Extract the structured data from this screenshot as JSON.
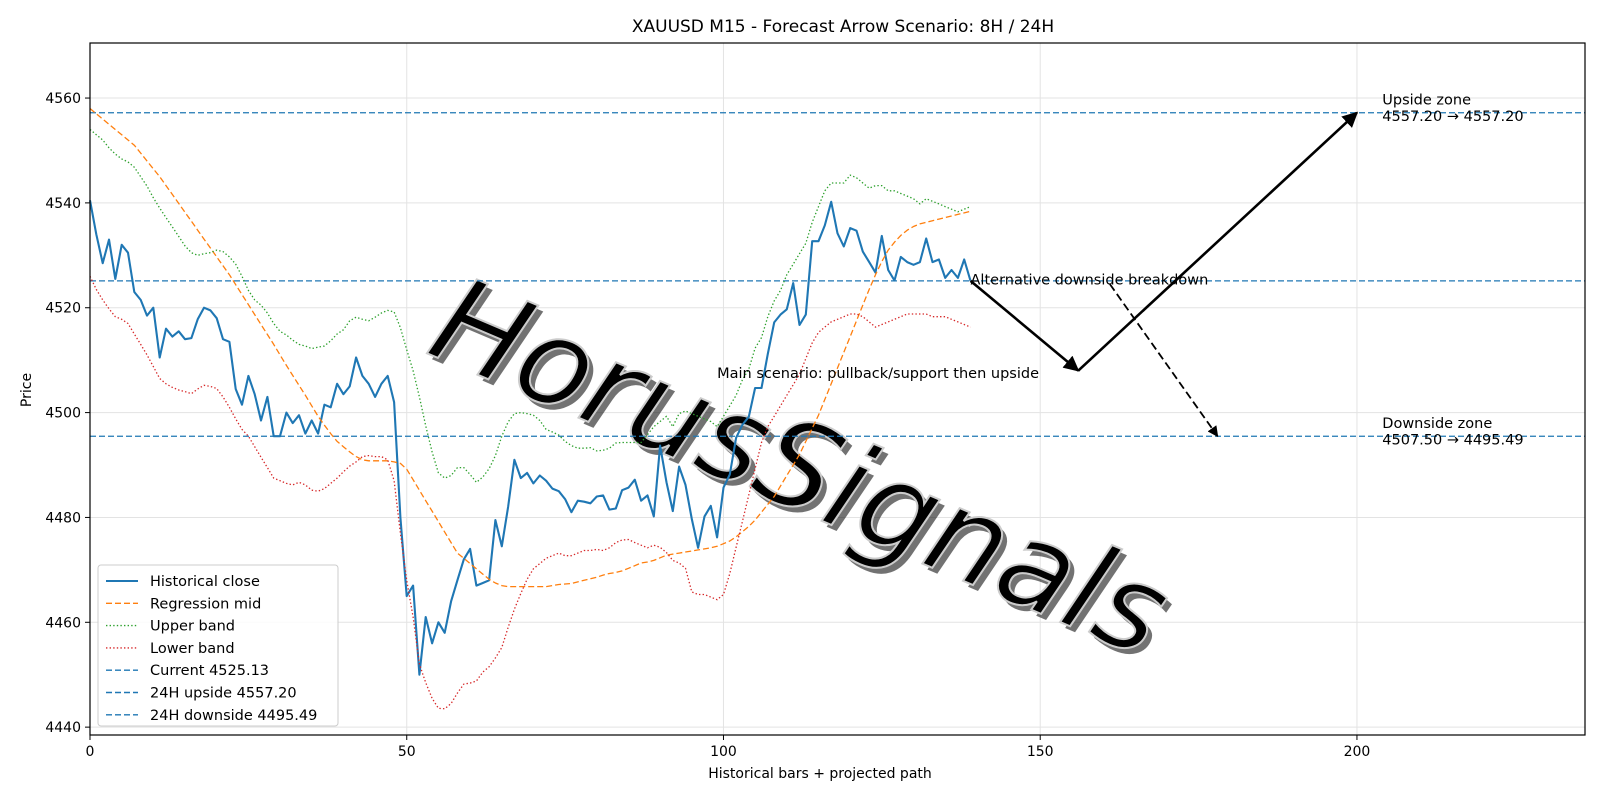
{
  "chart_data": {
    "type": "line",
    "title": "XAUUSD M15 - Forecast Arrow Scenario: 8H / 24H",
    "xlabel": "Historical bars + projected path",
    "ylabel": "Price",
    "xlim": [
      0,
      236
    ],
    "ylim": [
      4438.5,
      4570.5
    ],
    "x_ticks": [
      0,
      50,
      100,
      150,
      200
    ],
    "y_ticks": [
      4440,
      4460,
      4480,
      4500,
      4520,
      4540,
      4560
    ],
    "grid": true,
    "legend_position": "lower-left",
    "watermark": "HorusSignals",
    "colors": {
      "close": "#1f77b4",
      "mid": "#ff7f0e",
      "upper": "#2ca02c",
      "lower": "#d62728",
      "hline": "#1f77b4",
      "arrow": "#000000"
    },
    "series": [
      {
        "name": "Historical close",
        "style": "solid",
        "color": "#1f77b4",
        "values": [
          4540.5,
          4534,
          4528.5,
          4533,
          4525.5,
          4532,
          4530.5,
          4523,
          4521.5,
          4518.5,
          4520,
          4510.5,
          4516,
          4514.5,
          4515.5,
          4514,
          4514.2,
          4517.8,
          4520,
          4519.5,
          4518,
          4514,
          4513.5,
          4504.5,
          4501.5,
          4507,
          4503.5,
          4498.5,
          4503,
          4495.5,
          4495.5,
          4500,
          4498,
          4499.5,
          4496,
          4498.5,
          4496,
          4501.5,
          4501,
          4505.5,
          4503.5,
          4505,
          4510.5,
          4507,
          4505.5,
          4503,
          4505.5,
          4507,
          4502,
          4480,
          4465,
          4467,
          4450,
          4461,
          4456,
          4460,
          4458,
          4464,
          4468,
          4472,
          4474,
          4467,
          4467.5,
          4468,
          4479.5,
          4474.5,
          4482,
          4491,
          4487.5,
          4488.5,
          4486.5,
          4488,
          4487,
          4485.5,
          4485,
          4483.5,
          4481,
          4483.2,
          4483,
          4482.7,
          4484,
          4484.2,
          4481.5,
          4481.7,
          4485.2,
          4485.7,
          4487.2,
          4483.2,
          4484.2,
          4480.2,
          4493.7,
          4486.7,
          4481.2,
          4489.7,
          4486.2,
          4479.7,
          4474.2,
          4480.2,
          4482.2,
          4476.2,
          4485.7,
          4488.2,
          4495.2,
          4497.7,
          4499.2,
          4504.7,
          4504.7,
          4511.2,
          4517.2,
          4518.7,
          4519.7,
          4524.7,
          4516.7,
          4518.7,
          4532.7,
          4532.7,
          4535.7,
          4540.2,
          4534.2,
          4531.7,
          4535.2,
          4534.7,
          4530.7,
          4528.7,
          4526.7,
          4533.7,
          4527.2,
          4525.2,
          4529.7,
          4528.7,
          4528.2,
          4528.7,
          4533.2,
          4528.7,
          4529.2,
          4525.7,
          4527.2,
          4525.7,
          4529.2,
          4525.13
        ]
      },
      {
        "name": "Regression mid",
        "style": "dashed",
        "color": "#ff7f0e",
        "values": [
          4558,
          4557,
          4556,
          4555,
          4554,
          4553,
          4552,
          4551,
          4549.5,
          4548,
          4546.5,
          4545,
          4543.3,
          4541.6,
          4539.9,
          4538.2,
          4536.5,
          4534.8,
          4533.1,
          4531.4,
          4529.7,
          4528,
          4526.3,
          4524.4,
          4522.5,
          4520.6,
          4518.7,
          4516.8,
          4514.9,
          4513,
          4511,
          4509,
          4507.1,
          4505.2,
          4503.3,
          4501.3,
          4499.3,
          4497.6,
          4496,
          4494.5,
          4493.5,
          4492.5,
          4491.6,
          4491,
          4490.8,
          4490.8,
          4490.8,
          4490.8,
          4490.6,
          4490.3,
          4489.2,
          4487.2,
          4485.2,
          4483.2,
          4481.2,
          4479.2,
          4477.2,
          4475.2,
          4473.2,
          4472.2,
          4471.2,
          4470.2,
          4469.2,
          4468.2,
          4467.5,
          4467,
          4466.8,
          4466.8,
          4466.8,
          4466.8,
          4466.8,
          4466.8,
          4466.8,
          4467,
          4467.2,
          4467.3,
          4467.4,
          4467.7,
          4468,
          4468.3,
          4468.6,
          4469,
          4469.3,
          4469.5,
          4469.8,
          4470.3,
          4470.8,
          4471.3,
          4471.5,
          4471.8,
          4472.3,
          4472.8,
          4473,
          4473.2,
          4473.4,
          4473.6,
          4473.8,
          4474,
          4474.2,
          4474.5,
          4475,
          4475.5,
          4476.3,
          4477.3,
          4478.3,
          4479.5,
          4481,
          4482.5,
          4484,
          4486,
          4488,
          4490,
          4492,
          4494.5,
          4497,
          4499.5,
          4502.5,
          4505.5,
          4508.5,
          4511.5,
          4514.5,
          4517.5,
          4520.5,
          4523.5,
          4526.3,
          4528.8,
          4531,
          4532.5,
          4533.8,
          4534.8,
          4535.5,
          4536,
          4536.3,
          4536.6,
          4536.9,
          4537.2,
          4537.5,
          4537.8,
          4538.1,
          4538.4
        ]
      },
      {
        "name": "Upper band",
        "style": "dotted",
        "color": "#2ca02c",
        "values": [
          4554,
          4553,
          4552,
          4550.5,
          4549.3,
          4548.4,
          4547.8,
          4546.8,
          4545,
          4543.2,
          4541,
          4539,
          4537.2,
          4535.4,
          4533.6,
          4531.8,
          4530.5,
          4530,
          4530.3,
          4530.5,
          4531,
          4530.7,
          4529.7,
          4528.3,
          4526,
          4523.3,
          4521.5,
          4520.5,
          4519,
          4517,
          4515.5,
          4514.8,
          4513.8,
          4513,
          4512.7,
          4512.2,
          4512.5,
          4512.7,
          4513.7,
          4515,
          4515.8,
          4517.5,
          4518.2,
          4517.8,
          4517.5,
          4518.2,
          4519,
          4519.5,
          4519.2,
          4516.2,
          4512,
          4508,
          4503,
          4497.5,
          4492.5,
          4488.5,
          4487.5,
          4488,
          4489.5,
          4489.5,
          4488.2,
          4486.7,
          4487.7,
          4489.3,
          4491.8,
          4495.5,
          4498.2,
          4499.8,
          4500,
          4499.8,
          4499.5,
          4498.5,
          4496.8,
          4496.3,
          4495.7,
          4494.5,
          4493.7,
          4493.2,
          4493.2,
          4493.3,
          4492.7,
          4492.8,
          4493.2,
          4494.2,
          4494.3,
          4494.3,
          4494.3,
          4494.3,
          4495.8,
          4497.3,
          4498.3,
          4499.3,
          4497.3,
          4499.8,
          4500.3,
          4499.8,
          4499.3,
          4498.8,
          4498.3,
          4497.3,
          4499.3,
          4501.3,
          4503.3,
          4506.3,
          4508.3,
          4512.3,
          4514.3,
          4518.3,
          4521.3,
          4523.3,
          4526.3,
          4528.3,
          4530.3,
          4532.3,
          4536.3,
          4539.3,
          4542.3,
          4543.8,
          4543.8,
          4543.8,
          4545.3,
          4544.8,
          4543.8,
          4542.8,
          4543.3,
          4543.3,
          4542.3,
          4542.3,
          4541.8,
          4541.3,
          4540.8,
          4539.8,
          4540.8,
          4540.3,
          4539.8,
          4539.3,
          4538.8,
          4538.3,
          4538.8,
          4539.3
        ]
      },
      {
        "name": "Lower band",
        "style": "dotted",
        "color": "#d62728",
        "values": [
          4526,
          4523.5,
          4521.5,
          4519.8,
          4518.3,
          4517.8,
          4517,
          4515,
          4513,
          4511,
          4508.8,
          4506.5,
          4505.5,
          4504.8,
          4504.3,
          4504,
          4503.6,
          4504.5,
          4505.2,
          4505,
          4504.6,
          4503,
          4501,
          4498.8,
          4496.8,
          4495.5,
          4493.5,
          4491.5,
          4489.5,
          4487.5,
          4487,
          4486.5,
          4486.2,
          4486.7,
          4486.2,
          4485.2,
          4485,
          4485.5,
          4486.5,
          4487.5,
          4488.7,
          4489.8,
          4490.6,
          4491.6,
          4491.8,
          4491.6,
          4491.6,
          4491,
          4487,
          4477,
          4468,
          4461,
          4452,
          4448.5,
          4445.5,
          4443.6,
          4443.5,
          4444.5,
          4446.5,
          4448.2,
          4448.4,
          4448.8,
          4450.5,
          4451.5,
          4453.2,
          4455.2,
          4459,
          4462.5,
          4465.5,
          4468.2,
          4470.2,
          4471.2,
          4472.2,
          4472.7,
          4473.2,
          4472.7,
          4472.7,
          4473.2,
          4473.7,
          4473.7,
          4473.9,
          4473.7,
          4474.2,
          4475.2,
          4475.7,
          4475.8,
          4475.2,
          4474.7,
          4474.2,
          4474.7,
          4474.3,
          4473.3,
          4471.8,
          4471.3,
          4470.3,
          4465.8,
          4465.3,
          4465.3,
          4464.8,
          4464.3,
          4465.3,
          4469.3,
          4474.3,
          4479.3,
          4484.3,
          4489.3,
          4494.3,
          4497.3,
          4499.3,
          4501.3,
          4503.3,
          4505.3,
          4507.3,
          4510.3,
          4513.3,
          4515.3,
          4516.3,
          4517.3,
          4517.8,
          4518.3,
          4518.8,
          4518.8,
          4518.3,
          4517.3,
          4516.3,
          4516.8,
          4517.3,
          4517.8,
          4518.3,
          4518.8,
          4518.8,
          4518.8,
          4518.8,
          4518.3,
          4518.3,
          4518.3,
          4517.8,
          4517.3,
          4516.8,
          4516.3
        ]
      }
    ],
    "hlines": [
      {
        "name": "Current 4525.13",
        "value": 4525.13
      },
      {
        "name": "24H upside 4557.20",
        "value": 4557.2
      },
      {
        "name": "24H downside 4495.49",
        "value": 4495.49
      }
    ],
    "arrows": [
      {
        "name": "main-leg-1",
        "style": "solid",
        "from": [
          139,
          4525.13
        ],
        "to": [
          156,
          4508
        ]
      },
      {
        "name": "main-leg-2",
        "style": "solid",
        "from": [
          156,
          4508
        ],
        "to": [
          200,
          4557.2
        ]
      },
      {
        "name": "alternative",
        "style": "dashed",
        "from": [
          161,
          4524.5
        ],
        "to": [
          178,
          4495.49
        ]
      }
    ],
    "annotations": [
      {
        "key": "main",
        "text": "Main scenario: pullback/support then upside",
        "x": 99,
        "y": 4506.6
      },
      {
        "key": "alt",
        "text": "Alternative downside breakdown",
        "x": 139,
        "y": 4524.4
      },
      {
        "key": "up_l1",
        "text": "Upside zone",
        "x": 204,
        "y": 4558.8
      },
      {
        "key": "up_l2",
        "text": "4557.20 → 4557.20",
        "x": 204,
        "y": 4555.6
      },
      {
        "key": "dn_l1",
        "text": "Downside zone",
        "x": 204,
        "y": 4497.1
      },
      {
        "key": "dn_l2",
        "text": "4507.50 → 4495.49",
        "x": 204,
        "y": 4493.9
      }
    ]
  }
}
